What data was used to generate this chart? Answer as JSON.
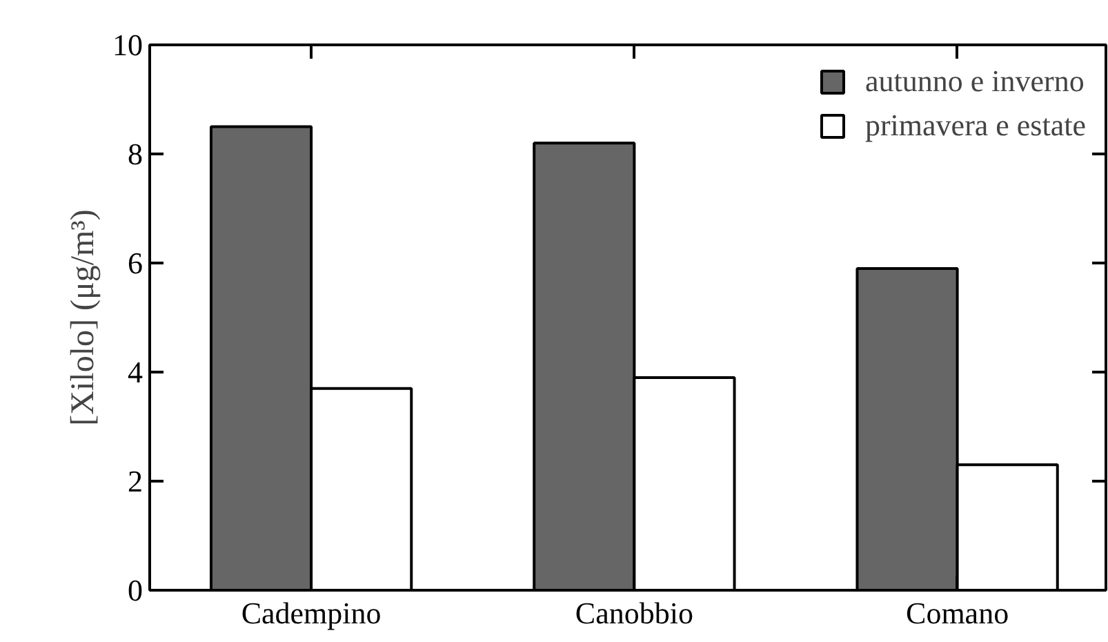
{
  "chart_data": {
    "type": "bar",
    "ylabel": "[Xilolo] (μg/m³)",
    "categories": [
      "Cadempino",
      "Canobbio",
      "Comano"
    ],
    "series": [
      {
        "name": "autunno e inverno",
        "color": "#666666",
        "values": [
          8.5,
          8.2,
          5.9
        ]
      },
      {
        "name": "primavera e estate",
        "color": "#ffffff",
        "values": [
          3.7,
          3.9,
          2.3
        ]
      }
    ],
    "ylim": [
      0,
      10
    ],
    "yticks": [
      0,
      2,
      4,
      6,
      8,
      10
    ],
    "grid": false,
    "legend": "top right"
  }
}
